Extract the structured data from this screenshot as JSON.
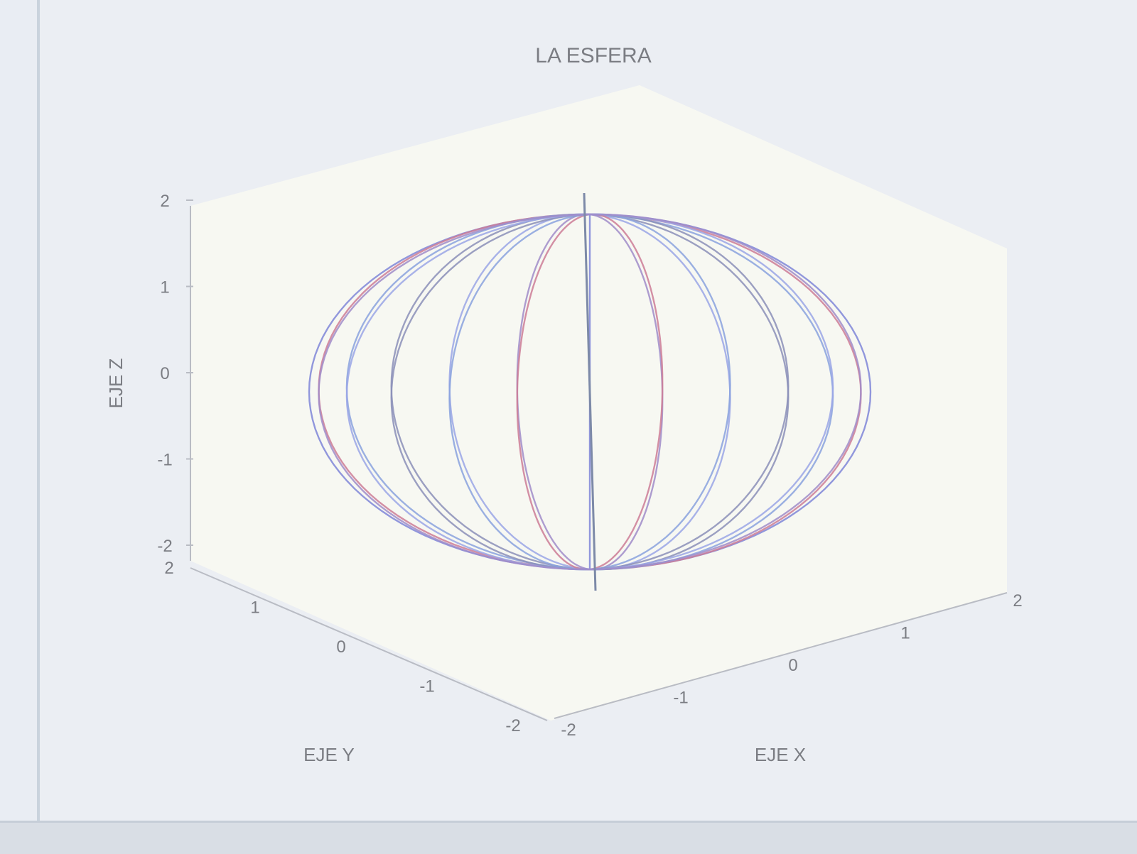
{
  "chart_data": {
    "type": "line",
    "title": "LA ESFERA",
    "xlabel": "EJE X",
    "ylabel": "EJE Y",
    "zlabel": "EJE Z",
    "xlim": [
      -2,
      2
    ],
    "ylim": [
      -2,
      2
    ],
    "zlim": [
      -2,
      2
    ],
    "x_ticks": [
      "-2",
      "-1",
      "0",
      "1",
      "2"
    ],
    "y_ticks": [
      "-2",
      "-1",
      "0",
      "1",
      "2"
    ],
    "z_ticks": [
      "-2",
      "-1",
      "0",
      "1",
      "2"
    ],
    "surface": "sphere",
    "radius": 2,
    "meridian_count": 12,
    "line_colors": [
      "#7f86d8",
      "#cc7d96",
      "#8aa2de",
      "#8b8fb8",
      "#9aa6e6",
      "#a08cc9"
    ],
    "grid": false
  }
}
